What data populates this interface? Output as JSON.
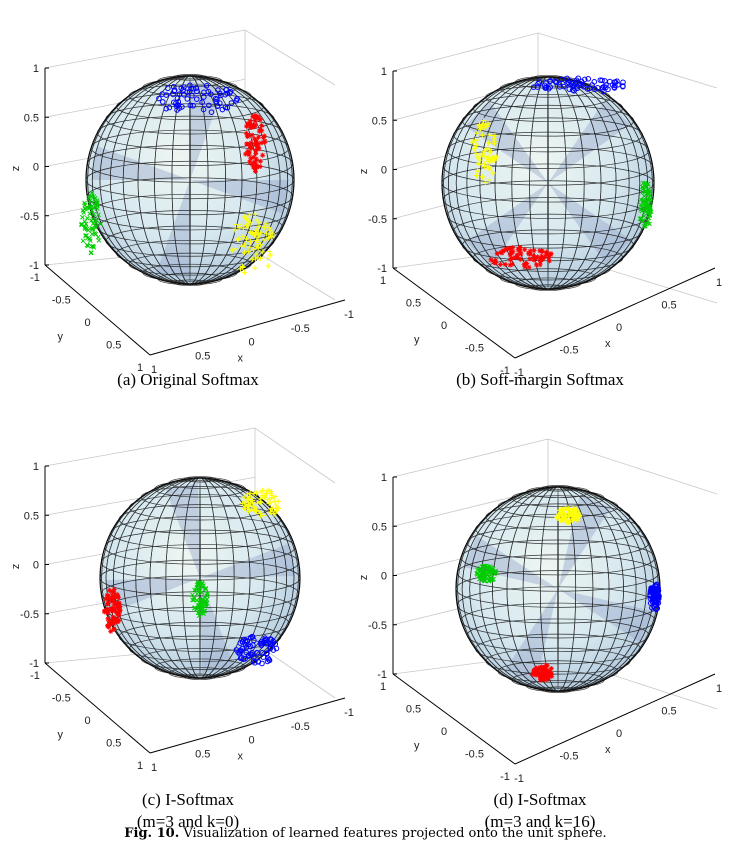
{
  "figure_caption": {
    "label": "Fig. 10.",
    "text": "Visualization of learned features projected onto the unit sphere."
  },
  "panels": [
    {
      "id": "a",
      "caption_lines": [
        "(a) Original Softmax"
      ],
      "z_ticks": [
        "1",
        "0.5",
        "0",
        "-0.5",
        "-1"
      ],
      "y_ticks": [
        "-1",
        "-0.5",
        "0",
        "0.5",
        "1"
      ],
      "x_ticks": [
        "1",
        "0.5",
        "0",
        "-0.5",
        "-1"
      ],
      "z_label": "z",
      "y_label": "y",
      "x_label": "x",
      "clusters": [
        {
          "color": "#0000ff",
          "marker": "o"
        },
        {
          "color": "#ff0000",
          "marker": "*"
        },
        {
          "color": "#ffff00",
          "marker": "+"
        },
        {
          "color": "#00cc00",
          "marker": "x"
        }
      ]
    },
    {
      "id": "b",
      "caption_lines": [
        "(b) Soft-margin Softmax"
      ],
      "z_ticks": [
        "1",
        "0.5",
        "0",
        "-0.5",
        "-1"
      ],
      "y_ticks": [
        "1",
        "0.5",
        "0",
        "-0.5",
        "-1"
      ],
      "x_ticks": [
        "-1",
        "-0.5",
        "0",
        "0.5",
        "1"
      ],
      "z_label": "z",
      "y_label": "y",
      "x_label": "x",
      "clusters": [
        {
          "color": "#0000ff",
          "marker": "o"
        },
        {
          "color": "#ffff00",
          "marker": "+"
        },
        {
          "color": "#00cc00",
          "marker": "x"
        },
        {
          "color": "#ff0000",
          "marker": "*"
        }
      ]
    },
    {
      "id": "c",
      "caption_lines": [
        "(c) I-Softmax",
        "(m=3 and k=0)"
      ],
      "z_ticks": [
        "1",
        "0.5",
        "0",
        "-0.5",
        "-1"
      ],
      "y_ticks": [
        "-1",
        "-0.5",
        "0",
        "0.5",
        "1"
      ],
      "x_ticks": [
        "1",
        "0.5",
        "0",
        "-0.5",
        "-1"
      ],
      "z_label": "z",
      "y_label": "y",
      "x_label": "x",
      "clusters": [
        {
          "color": "#ffff00",
          "marker": "+"
        },
        {
          "color": "#ff0000",
          "marker": "*"
        },
        {
          "color": "#00cc00",
          "marker": "x"
        },
        {
          "color": "#0000ff",
          "marker": "o"
        }
      ]
    },
    {
      "id": "d",
      "caption_lines": [
        "(d) I-Softmax",
        "(m=3 and k=16)"
      ],
      "z_ticks": [
        "1",
        "0.5",
        "0",
        "-0.5",
        "-1"
      ],
      "y_ticks": [
        "1",
        "0.5",
        "0",
        "-0.5",
        "-1"
      ],
      "x_ticks": [
        "-1",
        "-0.5",
        "0",
        "0.5",
        "1"
      ],
      "z_label": "z",
      "y_label": "y",
      "x_label": "x",
      "clusters": [
        {
          "color": "#ffff00",
          "marker": "+"
        },
        {
          "color": "#00cc00",
          "marker": "x"
        },
        {
          "color": "#0000ff",
          "marker": "o"
        },
        {
          "color": "#ff0000",
          "marker": "*"
        }
      ]
    }
  ]
}
